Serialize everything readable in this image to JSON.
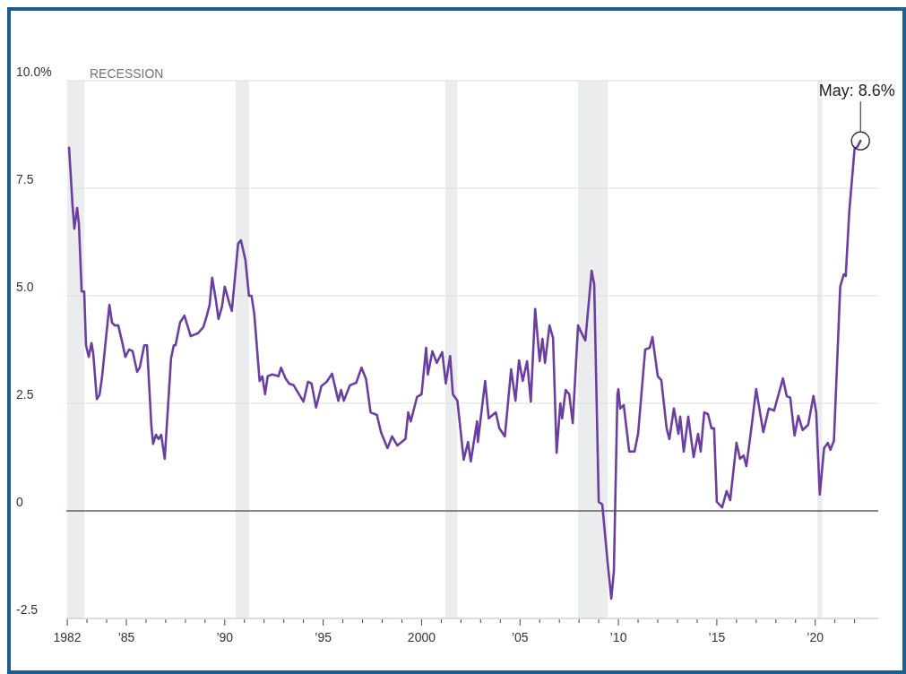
{
  "chart_data": {
    "type": "line",
    "x": [
      1982.09,
      1982.27,
      1982.36,
      1982.5,
      1982.59,
      1982.73,
      1982.86,
      1982.95,
      1983.09,
      1983.23,
      1983.32,
      1983.5,
      1983.64,
      1983.77,
      1984.0,
      1984.14,
      1984.27,
      1984.41,
      1984.59,
      1984.77,
      1984.95,
      1985.14,
      1985.32,
      1985.55,
      1985.68,
      1985.91,
      1986.05,
      1986.27,
      1986.36,
      1986.5,
      1986.64,
      1986.77,
      1986.95,
      1987.27,
      1987.41,
      1987.5,
      1987.73,
      1987.95,
      1988.09,
      1988.27,
      1988.64,
      1988.91,
      1989.09,
      1989.23,
      1989.36,
      1989.55,
      1989.68,
      1989.86,
      1990.0,
      1990.23,
      1990.36,
      1990.68,
      1990.82,
      1991.05,
      1991.23,
      1991.36,
      1991.5,
      1991.77,
      1991.91,
      1992.05,
      1992.18,
      1992.41,
      1992.73,
      1992.86,
      1993.09,
      1993.27,
      1993.5,
      1993.77,
      1994.0,
      1994.23,
      1994.41,
      1994.64,
      1994.91,
      1995.18,
      1995.45,
      1995.77,
      1995.91,
      1996.05,
      1996.36,
      1996.68,
      1996.95,
      1997.18,
      1997.41,
      1997.73,
      1997.95,
      1998.27,
      1998.5,
      1998.77,
      1999.18,
      1999.32,
      1999.45,
      1999.77,
      2000.0,
      2000.23,
      2000.32,
      2000.55,
      2000.77,
      2001.05,
      2001.23,
      2001.45,
      2001.59,
      2001.82,
      2002.14,
      2002.36,
      2002.5,
      2002.82,
      2002.86,
      2003.23,
      2003.41,
      2003.77,
      2003.95,
      2004.23,
      2004.55,
      2004.77,
      2004.95,
      2005.14,
      2005.36,
      2005.55,
      2005.77,
      2006.0,
      2006.14,
      2006.27,
      2006.5,
      2006.68,
      2006.86,
      2007.05,
      2007.14,
      2007.32,
      2007.5,
      2007.68,
      2007.95,
      2008.09,
      2008.32,
      2008.64,
      2008.77,
      2009.0,
      2009.18,
      2009.45,
      2009.64,
      2009.77,
      2009.95,
      2010.0,
      2010.09,
      2010.27,
      2010.55,
      2010.82,
      2011.0,
      2011.36,
      2011.59,
      2011.73,
      2012.0,
      2012.18,
      2012.45,
      2012.59,
      2012.82,
      2013.05,
      2013.14,
      2013.32,
      2013.55,
      2013.82,
      2014.05,
      2014.18,
      2014.36,
      2014.55,
      2014.73,
      2014.86,
      2015.0,
      2015.27,
      2015.5,
      2015.68,
      2016.0,
      2016.18,
      2016.36,
      2016.5,
      2016.73,
      2017.0,
      2017.36,
      2017.64,
      2017.91,
      2018.09,
      2018.36,
      2018.55,
      2018.73,
      2018.95,
      2019.14,
      2019.36,
      2019.64,
      2019.91,
      2020.05,
      2020.23,
      2020.45,
      2020.64,
      2020.77,
      2020.95,
      2021.27,
      2021.45,
      2021.55,
      2021.73,
      2022.0,
      2022.14,
      2022.3
    ],
    "values": [
      8.44,
      7.08,
      6.56,
      7.04,
      6.67,
      5.1,
      5.1,
      3.85,
      3.58,
      3.9,
      3.65,
      2.6,
      2.7,
      3.13,
      4.17,
      4.79,
      4.38,
      4.31,
      4.31,
      3.96,
      3.58,
      3.75,
      3.71,
      3.23,
      3.33,
      3.85,
      3.85,
      1.98,
      1.56,
      1.77,
      1.67,
      1.77,
      1.21,
      3.54,
      3.85,
      3.85,
      4.38,
      4.54,
      4.33,
      4.06,
      4.13,
      4.27,
      4.54,
      4.79,
      5.42,
      4.9,
      4.46,
      4.75,
      5.21,
      4.83,
      4.65,
      6.21,
      6.29,
      5.83,
      5.0,
      5.0,
      4.58,
      3.02,
      3.13,
      2.71,
      3.13,
      3.17,
      3.13,
      3.33,
      3.08,
      2.96,
      2.92,
      2.71,
      2.54,
      3.0,
      2.96,
      2.4,
      2.9,
      3.0,
      3.19,
      2.56,
      2.81,
      2.56,
      2.92,
      2.98,
      3.33,
      3.06,
      2.29,
      2.23,
      1.81,
      1.46,
      1.73,
      1.52,
      1.67,
      2.29,
      2.08,
      2.65,
      2.71,
      3.79,
      3.17,
      3.71,
      3.44,
      3.69,
      2.96,
      3.6,
      2.71,
      2.56,
      1.19,
      1.6,
      1.15,
      2.08,
      1.6,
      3.02,
      2.15,
      2.29,
      1.92,
      1.73,
      3.29,
      2.56,
      3.5,
      3.02,
      3.48,
      2.54,
      4.69,
      3.48,
      4.0,
      3.44,
      4.31,
      4.02,
      1.35,
      2.5,
      2.15,
      2.81,
      2.71,
      2.04,
      4.31,
      4.17,
      3.96,
      5.58,
      5.27,
      0.21,
      0.15,
      -1.19,
      -2.04,
      -1.4,
      2.71,
      2.83,
      2.38,
      2.46,
      1.38,
      1.38,
      1.79,
      3.75,
      3.79,
      4.04,
      3.13,
      3.04,
      1.92,
      1.67,
      2.38,
      1.79,
      2.19,
      1.38,
      2.19,
      1.25,
      1.79,
      1.38,
      2.29,
      2.25,
      1.92,
      1.92,
      0.21,
      0.08,
      0.46,
      0.25,
      1.58,
      1.21,
      1.29,
      1.04,
      1.83,
      2.83,
      1.83,
      2.38,
      2.33,
      2.63,
      3.08,
      2.67,
      2.63,
      1.75,
      2.21,
      1.88,
      2.0,
      2.67,
      2.29,
      0.38,
      1.46,
      1.58,
      1.42,
      1.63,
      5.21,
      5.5,
      5.46,
      6.96,
      8.42,
      8.46,
      8.6
    ],
    "color": "#6b3fa0",
    "xlim": [
      1981.95,
      2023.2
    ],
    "xticks": [
      {
        "value": 1982,
        "label": "1982"
      },
      {
        "value": 1983,
        "label": null
      },
      {
        "value": 1984,
        "label": null
      },
      {
        "value": 1985,
        "label": "’85"
      },
      {
        "value": 1986,
        "label": null
      },
      {
        "value": 1987,
        "label": null
      },
      {
        "value": 1988,
        "label": null
      },
      {
        "value": 1989,
        "label": null
      },
      {
        "value": 1990,
        "label": "’90"
      },
      {
        "value": 1991,
        "label": null
      },
      {
        "value": 1992,
        "label": null
      },
      {
        "value": 1993,
        "label": null
      },
      {
        "value": 1994,
        "label": null
      },
      {
        "value": 1995,
        "label": "’95"
      },
      {
        "value": 1996,
        "label": null
      },
      {
        "value": 1997,
        "label": null
      },
      {
        "value": 1998,
        "label": null
      },
      {
        "value": 1999,
        "label": null
      },
      {
        "value": 2000,
        "label": "2000"
      },
      {
        "value": 2001,
        "label": null
      },
      {
        "value": 2002,
        "label": null
      },
      {
        "value": 2003,
        "label": null
      },
      {
        "value": 2004,
        "label": null
      },
      {
        "value": 2005,
        "label": "’05"
      },
      {
        "value": 2006,
        "label": null
      },
      {
        "value": 2007,
        "label": null
      },
      {
        "value": 2008,
        "label": null
      },
      {
        "value": 2009,
        "label": null
      },
      {
        "value": 2010,
        "label": "’10"
      },
      {
        "value": 2011,
        "label": null
      },
      {
        "value": 2012,
        "label": null
      },
      {
        "value": 2013,
        "label": null
      },
      {
        "value": 2014,
        "label": null
      },
      {
        "value": 2015,
        "label": "’15"
      },
      {
        "value": 2016,
        "label": null
      },
      {
        "value": 2017,
        "label": null
      },
      {
        "value": 2018,
        "label": null
      },
      {
        "value": 2019,
        "label": null
      },
      {
        "value": 2020,
        "label": "’20"
      },
      {
        "value": 2021,
        "label": null
      },
      {
        "value": 2022,
        "label": null
      }
    ],
    "ylim": [
      -2.5,
      10
    ],
    "yticks": [
      {
        "value": -2.5,
        "label": "-2.5"
      },
      0,
      {
        "value": 2.5,
        "label": "2.5"
      },
      {
        "value": 5,
        "label": "5.0"
      },
      {
        "value": 7.5,
        "label": "7.5"
      },
      {
        "value": 10,
        "label": "10.0%"
      }
    ],
    "grid": "y",
    "ref_lines": [
      {
        "axis": "y",
        "value": 0,
        "color": "#222222"
      }
    ],
    "bands": [
      {
        "axis": "x",
        "from": 1982.0,
        "to": 1982.86,
        "label": "RECESSION",
        "color": "#ebecee"
      },
      {
        "axis": "x",
        "from": 1990.55,
        "to": 1991.23,
        "color": "#ebecee"
      },
      {
        "axis": "x",
        "from": 2001.2,
        "to": 2001.82,
        "color": "#ebecee"
      },
      {
        "axis": "x",
        "from": 2007.95,
        "to": 2009.45,
        "color": "#ebecee"
      },
      {
        "axis": "x",
        "from": 2020.1,
        "to": 2020.35,
        "color": "#ebecee"
      }
    ],
    "annotations": [
      {
        "text": "May: 8.6%",
        "x": 2022.3,
        "y": 8.6
      }
    ]
  }
}
